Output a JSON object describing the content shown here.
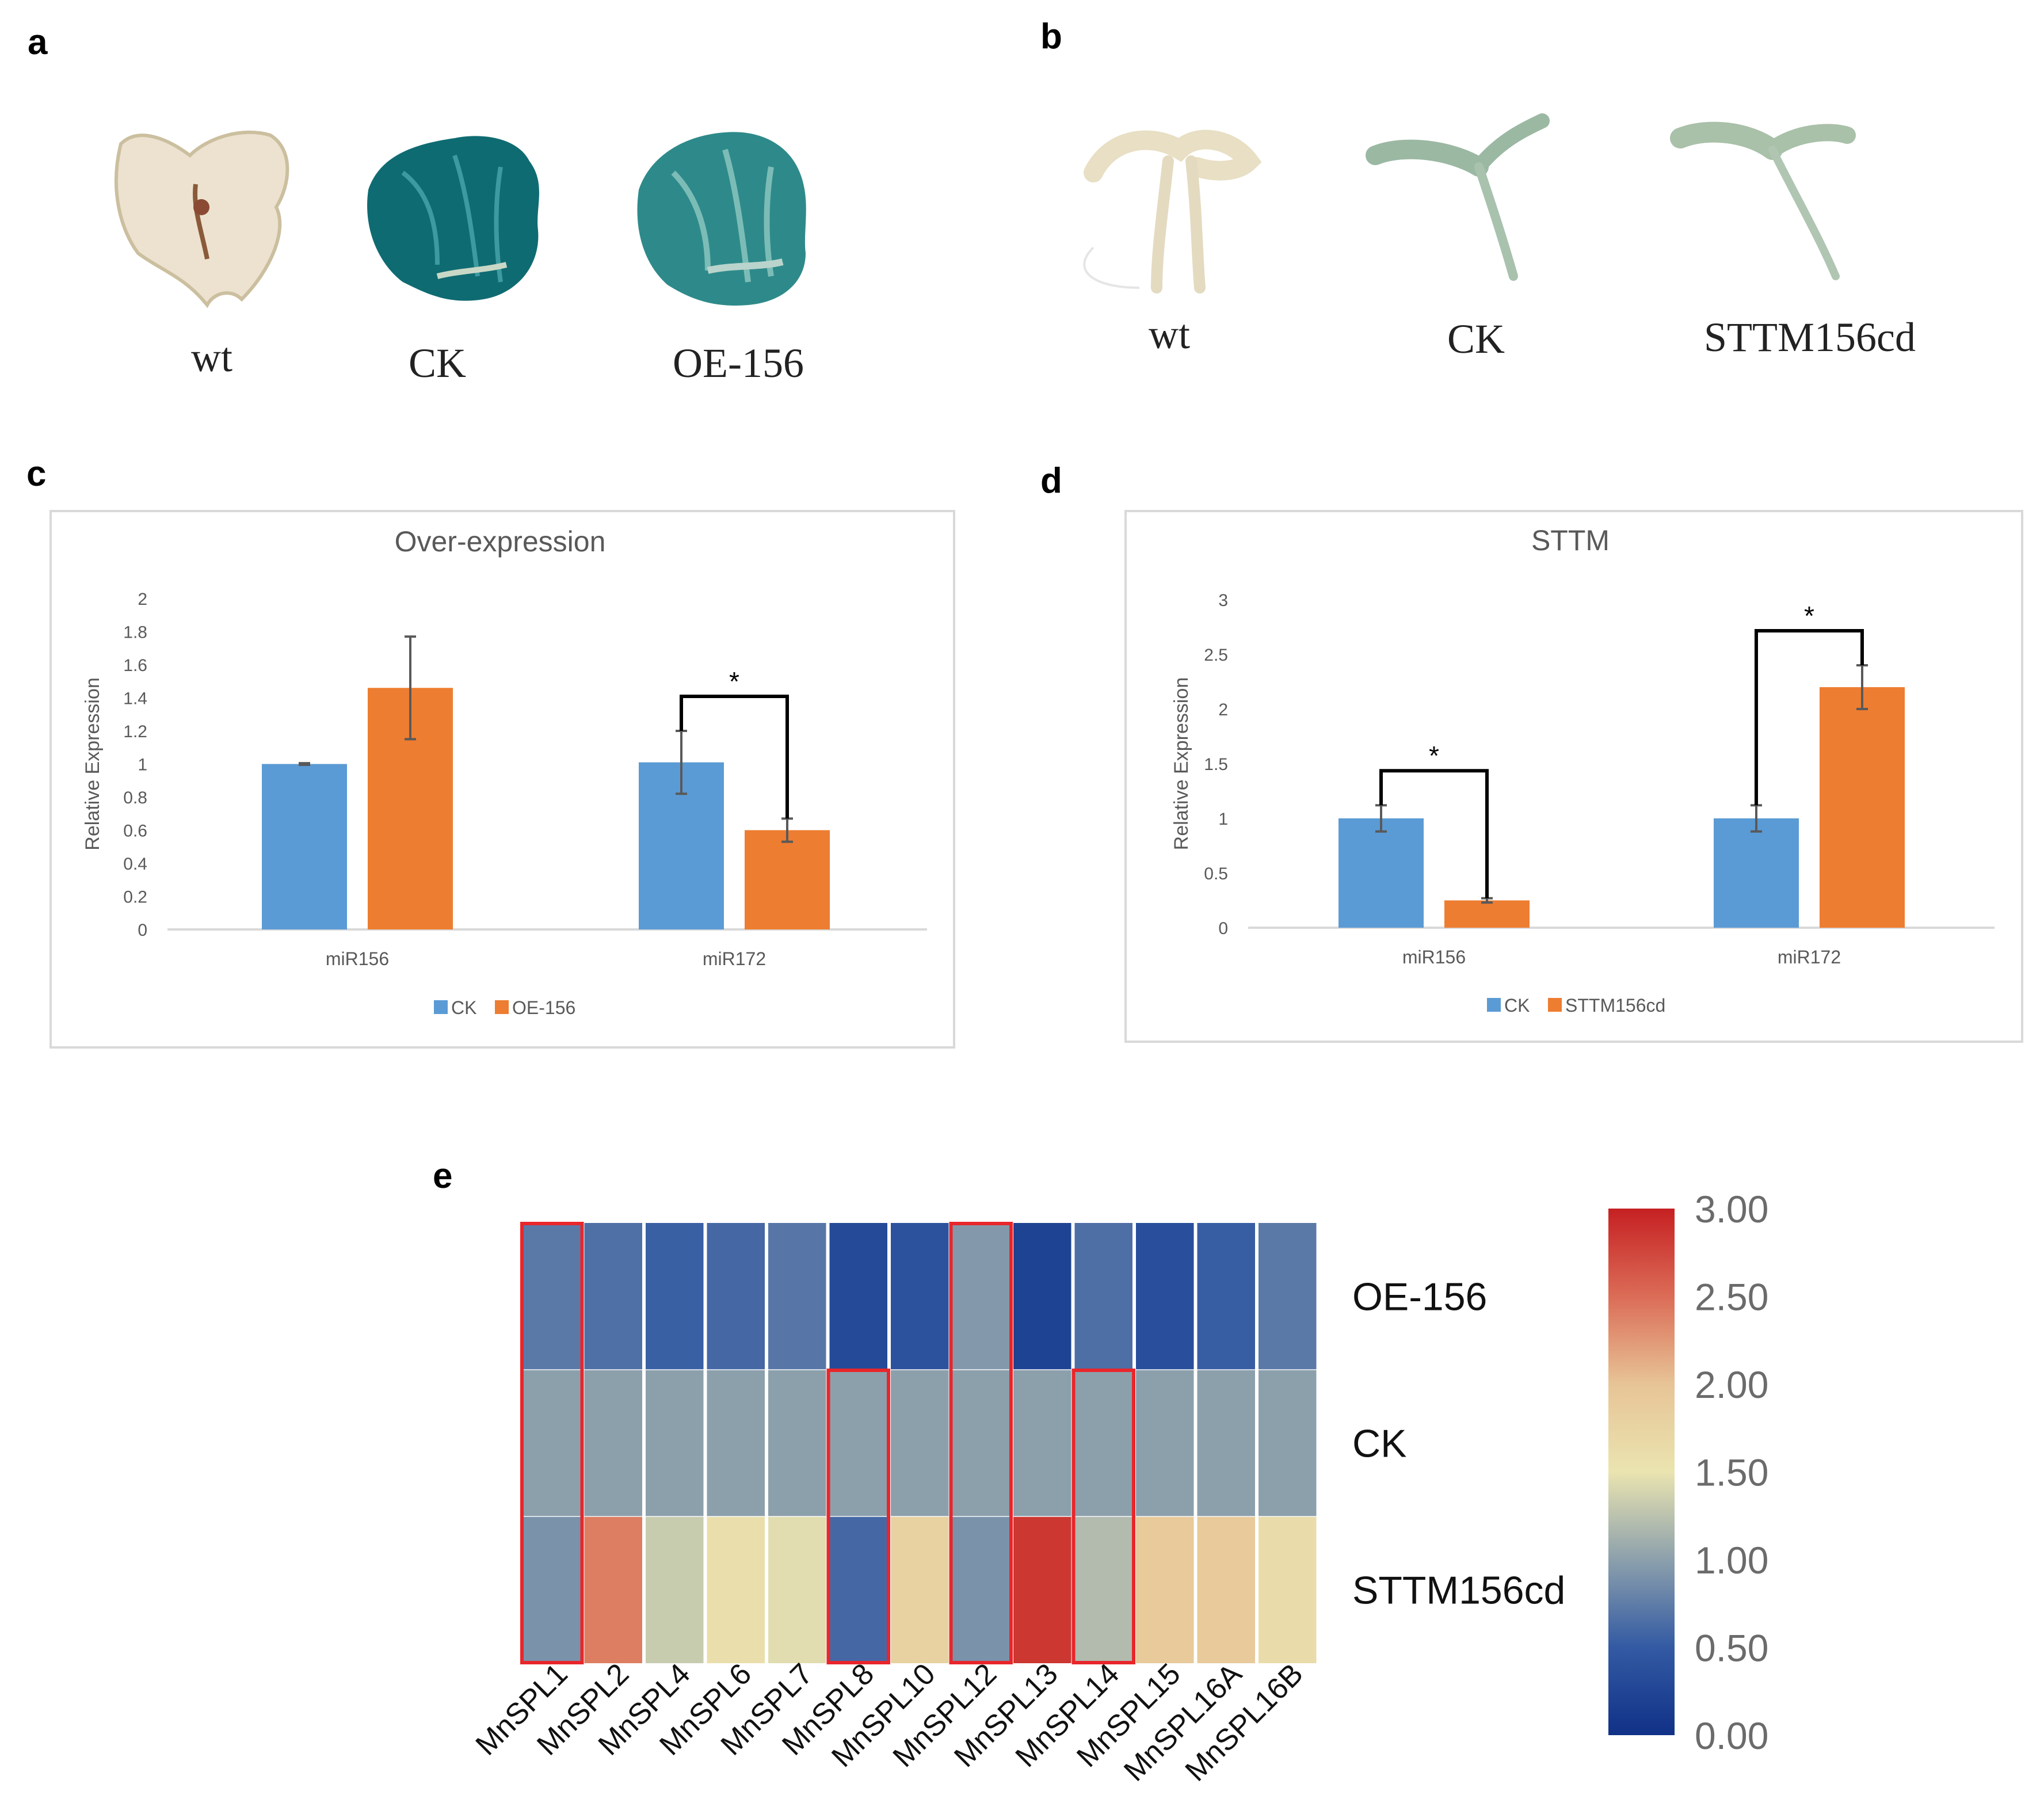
{
  "panels": {
    "a": "a",
    "b": "b",
    "c": "c",
    "d": "d",
    "e": "e"
  },
  "panel_a": {
    "labels": [
      "wt",
      "CK",
      "OE-156"
    ]
  },
  "panel_b": {
    "labels": [
      "wt",
      "CK",
      "STTM156cd"
    ]
  },
  "colors": {
    "ck": "#5b9bd5",
    "treat": "#ed7d31",
    "grid_axis": "#d9d9d9",
    "highlight": "#e8262b"
  },
  "chart_data": [
    {
      "type": "bar",
      "panel": "c",
      "title": "Over-expression",
      "ylabel": "Relative Expression",
      "xlabel": "",
      "categories": [
        "miR156",
        "miR172"
      ],
      "ylim": [
        0,
        2
      ],
      "yticks": [
        "0",
        "0.2",
        "0.4",
        "0.6",
        "0.8",
        "1",
        "1.2",
        "1.4",
        "1.6",
        "1.8",
        "2"
      ],
      "series": [
        {
          "name": "CK",
          "values": [
            1.0,
            1.01
          ],
          "errors": [
            0.005,
            0.19
          ]
        },
        {
          "name": "OE-156",
          "values": [
            1.46,
            0.6
          ],
          "errors": [
            0.31,
            0.07
          ]
        }
      ],
      "significance": [
        {
          "category": "miR172",
          "label": "*"
        }
      ],
      "legend": "bottom"
    },
    {
      "type": "bar",
      "panel": "d",
      "title": "STTM",
      "ylabel": "Relative Expression",
      "xlabel": "",
      "categories": [
        "miR156",
        "miR172"
      ],
      "ylim": [
        0,
        3
      ],
      "yticks": [
        "0",
        "0.5",
        "1",
        "1.5",
        "2",
        "2.5",
        "3"
      ],
      "series": [
        {
          "name": "CK",
          "values": [
            1.0,
            1.0
          ],
          "errors": [
            0.12,
            0.12
          ]
        },
        {
          "name": "STTM156cd",
          "values": [
            0.25,
            2.2
          ],
          "errors": [
            0.02,
            0.2
          ]
        }
      ],
      "significance": [
        {
          "category": "miR156",
          "label": "*"
        },
        {
          "category": "miR172",
          "label": "*"
        }
      ],
      "legend": "bottom"
    },
    {
      "type": "heatmap",
      "panel": "e",
      "columns": [
        "MnSPL1",
        "MnSPL2",
        "MnSPL4",
        "MnSPL6",
        "MnSPL7",
        "MnSPL8",
        "MnSPL10",
        "MnSPL12",
        "MnSPL13",
        "MnSPL14",
        "MnSPL15",
        "MnSPL16A",
        "MnSPL16B"
      ],
      "rows": [
        "OE-156",
        "CK",
        "STTM156cd"
      ],
      "values": [
        [
          0.72,
          0.66,
          0.54,
          0.6,
          0.7,
          0.3,
          0.4,
          0.95,
          0.22,
          0.65,
          0.35,
          0.52,
          0.72
        ],
        [
          1.0,
          1.0,
          1.0,
          1.0,
          1.0,
          1.0,
          1.0,
          1.0,
          1.0,
          1.0,
          1.0,
          1.0,
          1.0
        ],
        [
          0.9,
          2.4,
          1.32,
          1.58,
          1.45,
          0.6,
          1.78,
          0.9,
          2.85,
          1.2,
          1.9,
          1.9,
          1.62
        ]
      ],
      "highlighted": [
        {
          "column": "MnSPL1",
          "rows": [
            "OE-156",
            "CK",
            "STTM156cd"
          ]
        },
        {
          "column": "MnSPL8",
          "rows": [
            "CK",
            "STTM156cd"
          ]
        },
        {
          "column": "MnSPL12",
          "rows": [
            "OE-156",
            "CK",
            "STTM156cd"
          ]
        },
        {
          "column": "MnSPL14",
          "rows": [
            "CK",
            "STTM156cd"
          ]
        }
      ],
      "scale": {
        "min": 0,
        "max": 3,
        "ticks": [
          "3.00",
          "2.50",
          "2.00",
          "1.50",
          "1.00",
          "0.50",
          "0.00"
        ]
      }
    }
  ]
}
